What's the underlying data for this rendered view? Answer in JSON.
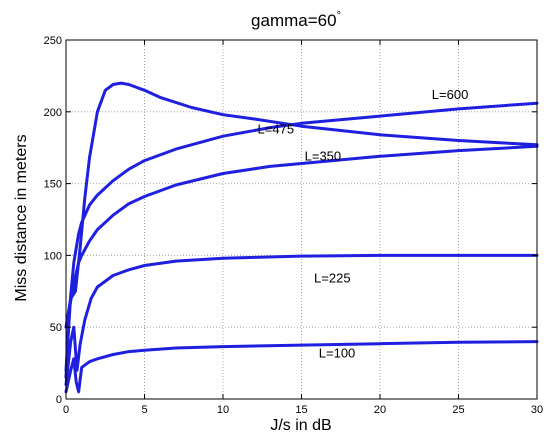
{
  "chart_data": {
    "type": "line",
    "title": "gamma=60",
    "title_superscript": "°",
    "xlabel": "J/s in dB",
    "ylabel": "Miss distance in meters",
    "xlim": [
      0,
      30
    ],
    "ylim": [
      0,
      250
    ],
    "xticks": [
      "0",
      "5",
      "10",
      "15",
      "20",
      "25",
      "30"
    ],
    "yticks": [
      "0",
      "50",
      "100",
      "150",
      "200",
      "250"
    ],
    "grid": true,
    "line_color": "#1f1fe0",
    "series": [
      {
        "x": [
          0,
          0.3,
          0.5,
          0.65,
          0.8,
          1,
          1.5,
          2,
          3,
          4,
          5,
          7,
          10,
          15,
          20,
          25,
          30
        ],
        "y": [
          5,
          20,
          28,
          12,
          5,
          22,
          26,
          28,
          31,
          33,
          34,
          35.5,
          36.5,
          37.5,
          38.5,
          39.5,
          40
        ]
      },
      {
        "x": [
          0,
          0.3,
          0.5,
          0.7,
          0.9,
          1.2,
          1.6,
          2,
          3,
          4,
          5,
          7,
          10,
          15,
          20,
          25,
          30
        ],
        "y": [
          10,
          40,
          50,
          20,
          38,
          55,
          70,
          78,
          86,
          90,
          93,
          96,
          98,
          99.5,
          100,
          100,
          100
        ]
      },
      {
        "x": [
          0,
          0.2,
          0.5,
          0.8,
          1,
          1.5,
          2,
          3,
          4,
          5,
          7,
          10,
          13,
          15,
          20,
          25,
          30
        ],
        "y": [
          15,
          62,
          80,
          95,
          100,
          110,
          118,
          128,
          136,
          141,
          149,
          157,
          162,
          164,
          169,
          173,
          176
        ]
      },
      {
        "x": [
          0,
          0.3,
          0.5,
          0.8,
          1,
          1.5,
          2,
          3,
          4,
          5,
          7,
          10,
          13,
          15,
          20,
          25,
          30
        ],
        "y": [
          20,
          72,
          95,
          115,
          123,
          135,
          142,
          152,
          160,
          166,
          174,
          183,
          189,
          192,
          197,
          202,
          206
        ]
      },
      {
        "x": [
          0,
          0.3,
          0.6,
          0.9,
          1.2,
          1.5,
          2,
          2.5,
          3,
          3.5,
          4,
          5,
          6,
          8,
          10,
          12,
          15,
          20,
          25,
          30
        ],
        "y": [
          50,
          70,
          75,
          105,
          140,
          168,
          200,
          215,
          219,
          220,
          219,
          215,
          210,
          203,
          198,
          195,
          190,
          184,
          180,
          177
        ]
      }
    ],
    "annotations": [
      {
        "text": "L=600",
        "x": 23.3,
        "y": 209
      },
      {
        "text": "L=475",
        "x": 12.2,
        "y": 185
      },
      {
        "text": "L=350",
        "x": 15.2,
        "y": 166
      },
      {
        "text": "L=225",
        "x": 15.8,
        "y": 81
      },
      {
        "text": "L=100",
        "x": 16.1,
        "y": 29
      }
    ]
  }
}
